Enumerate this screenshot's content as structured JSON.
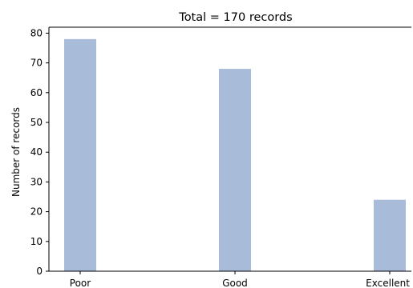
{
  "chart_data": {
    "type": "bar",
    "title": "Total = 170 records",
    "xlabel": "",
    "ylabel": "Number of records",
    "categories": [
      "Poor",
      "Good",
      "Excellent"
    ],
    "values": [
      78,
      68,
      24
    ],
    "ylim": [
      0,
      82
    ],
    "yticks": [
      "0",
      "10",
      "20",
      "30",
      "40",
      "50",
      "60",
      "70",
      "80"
    ],
    "grid": false,
    "legend": "none",
    "bar_color": "#a8bcda",
    "axis_color": "#000000"
  }
}
